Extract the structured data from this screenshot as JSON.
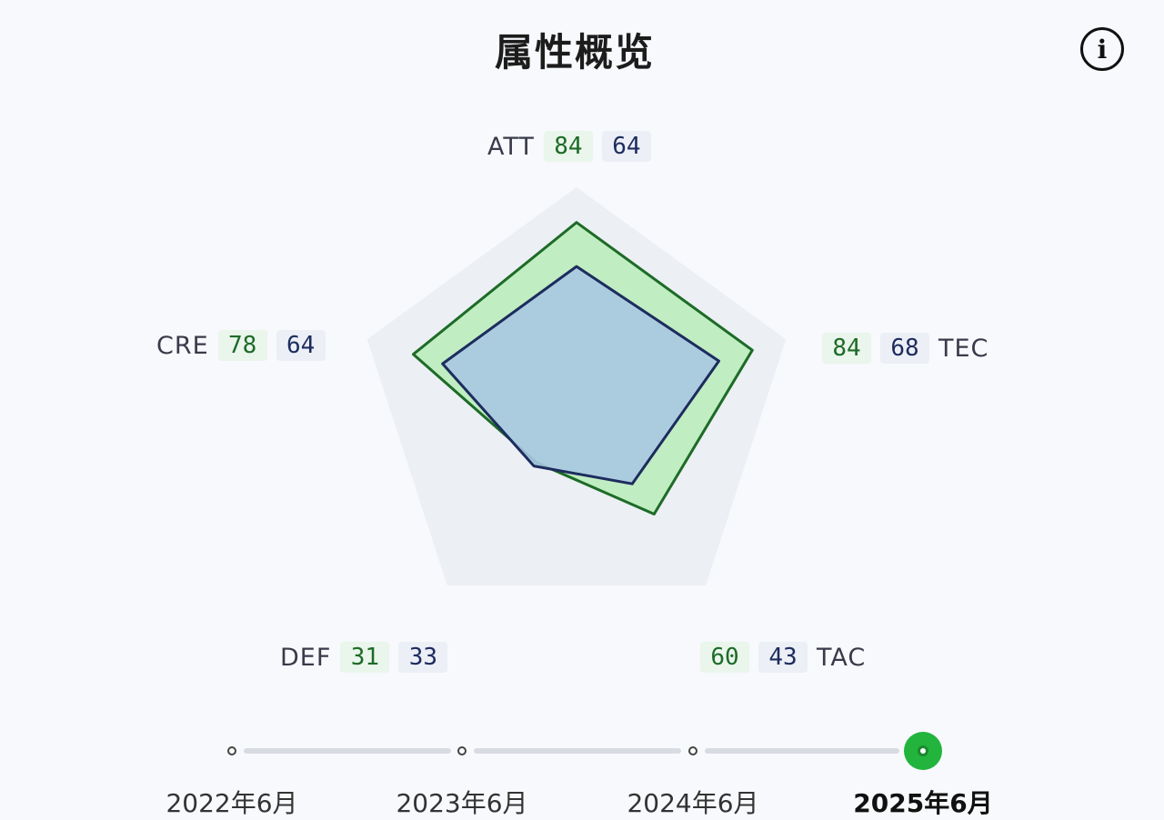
{
  "header": {
    "title": "属性概览",
    "info_icon_glyph": "i"
  },
  "chart_data": {
    "type": "radar",
    "title": "属性概览",
    "axes": [
      "ATT",
      "TEC",
      "TAC",
      "DEF",
      "CRE"
    ],
    "max": 100,
    "series": [
      {
        "values": [
          84,
          84,
          60,
          31,
          78
        ],
        "color": "#1d6b27",
        "fill": "#b9ecb9"
      },
      {
        "values": [
          64,
          68,
          43,
          33,
          64
        ],
        "color": "#1d2c5e",
        "fill": "#a9c8e2"
      }
    ],
    "background_color": "#eceff4"
  },
  "timeline": {
    "items": [
      {
        "label": "2022年6月",
        "active": false
      },
      {
        "label": "2023年6月",
        "active": false
      },
      {
        "label": "2024年6月",
        "active": false
      },
      {
        "label": "2025年6月",
        "active": true
      }
    ],
    "active_color": "#22b43c"
  }
}
